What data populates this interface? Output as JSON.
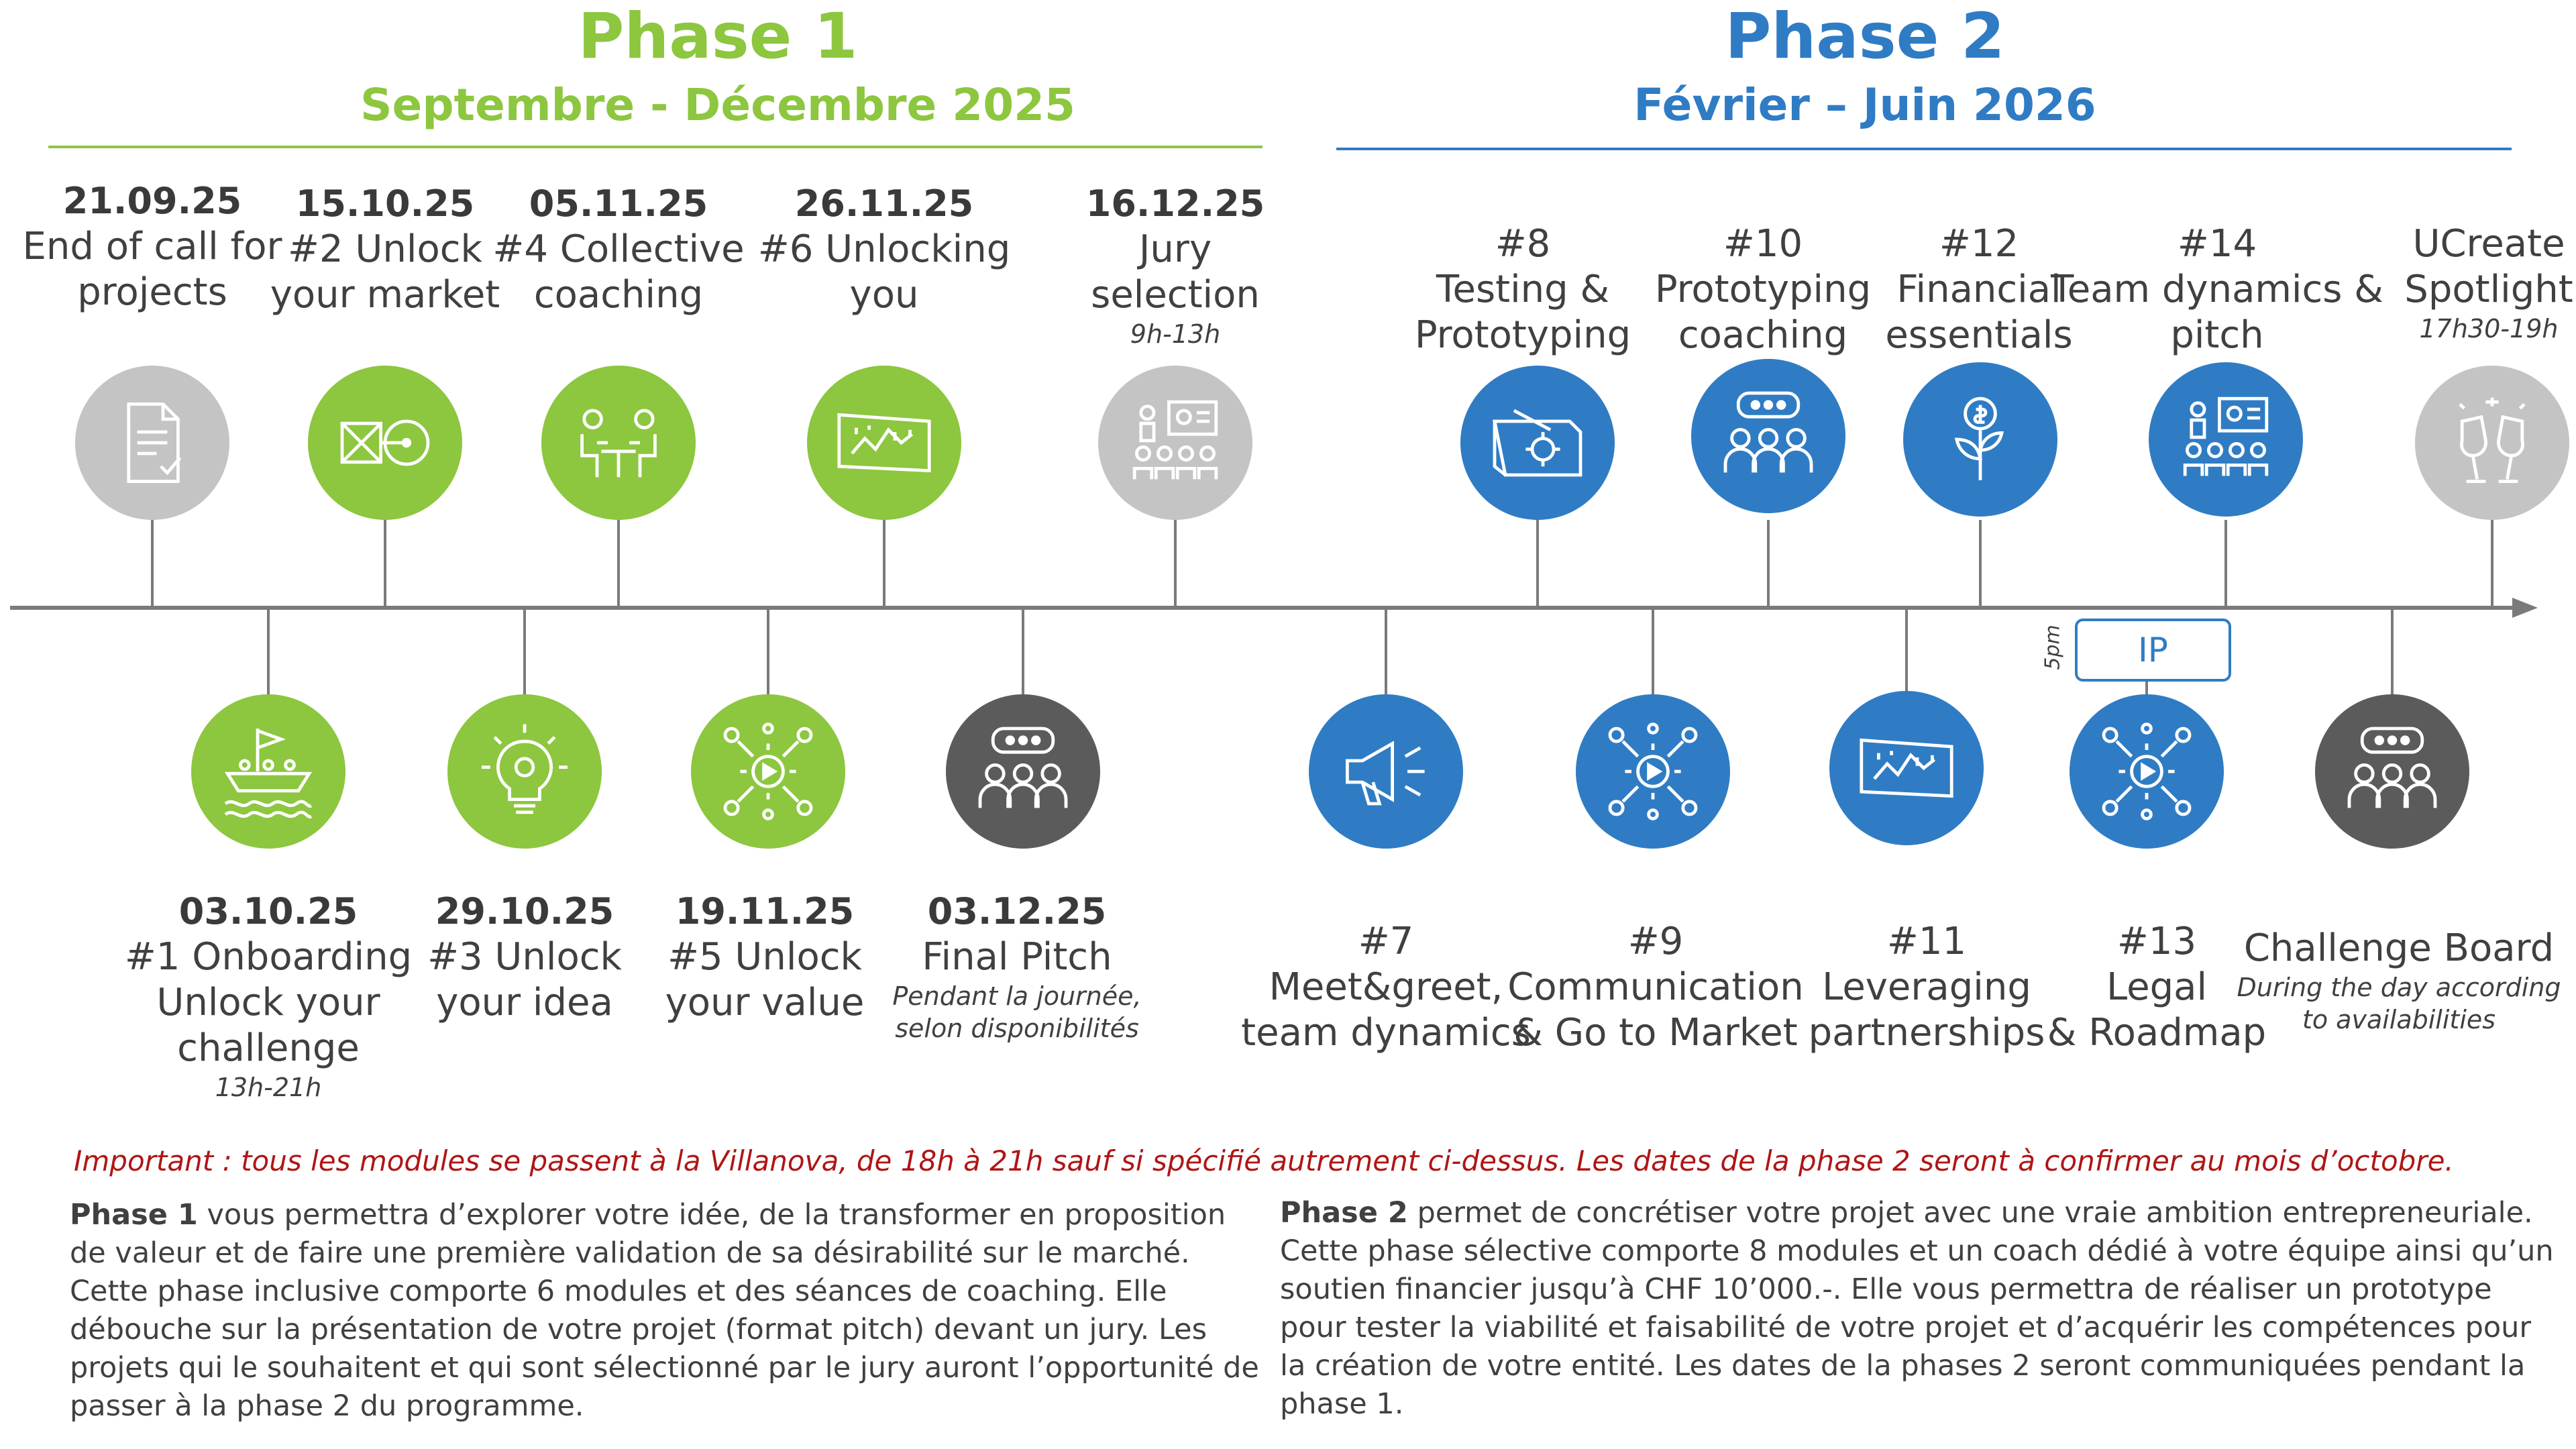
{
  "phase1": {
    "title": "Phase 1",
    "dates": "Septembre - Décembre 2025"
  },
  "phase2": {
    "title": "Phase 2",
    "dates": "Février – Juin 2026"
  },
  "colors": {
    "phase1": "#8dc63f",
    "phase2": "#2f7cc4",
    "grey": "#c4c4c4",
    "dark_grey": "#5b5b5b",
    "important": "#b01515"
  },
  "top_events": [
    {
      "date": "21.09.25",
      "label1": "End of call for",
      "label2": "projects",
      "icon": "document-check-icon"
    },
    {
      "date": "15.10.25",
      "label1": "#2 Unlock",
      "label2": "your market",
      "icon": "market-diagram-icon"
    },
    {
      "date": "05.11.25",
      "label1": "#4 Collective",
      "label2": "coaching",
      "icon": "meeting-table-icon"
    },
    {
      "date": "26.11.25",
      "label1": "#6 Unlocking",
      "label2": "you",
      "icon": "strategy-board-icon"
    },
    {
      "date": "16.12.25",
      "label1": "Jury",
      "label2": "selection",
      "time": "9h-13h",
      "icon": "presentation-audience-icon"
    },
    {
      "date": "#8",
      "label1": "Testing &",
      "label2": "Prototyping",
      "icon": "blueprint-gear-icon"
    },
    {
      "date": "#10",
      "label1": "Prototyping",
      "label2": "coaching",
      "icon": "chat-group-icon"
    },
    {
      "date": "#12",
      "label1": "Financial",
      "label2": "essentials",
      "icon": "money-plant-icon"
    },
    {
      "date": "#14",
      "label1": "Team dynamics &",
      "label2": "pitch",
      "icon": "presentation-audience-icon"
    },
    {
      "date": "UCreate",
      "label1": "Spotlight",
      "time": "17h30-19h",
      "icon": "champagne-toast-icon"
    }
  ],
  "bottom_events": [
    {
      "date": "03.10.25",
      "label1": "#1 Onboarding",
      "label2": "Unlock your",
      "label3": "challenge",
      "time": "13h-21h",
      "icon": "boat-crew-icon"
    },
    {
      "date": "29.10.25",
      "label1": "#3 Unlock",
      "label2": "your idea",
      "icon": "lightbulb-gear-icon"
    },
    {
      "date": "19.11.25",
      "label1": "#5 Unlock",
      "label2": "your value",
      "icon": "network-gear-icon"
    },
    {
      "date": "03.12.25",
      "label1": "Final Pitch",
      "note1": "Pendant la journée,",
      "note2": "selon disponibilités",
      "icon": "chat-group-icon"
    },
    {
      "date": "#7",
      "label1": "Meet&greet,",
      "label2": "team dynamics",
      "icon": "megaphone-icon"
    },
    {
      "date": "#9",
      "label1": "Communication",
      "label2": "& Go to Market",
      "icon": "network-gear-icon"
    },
    {
      "date": "#11",
      "label1": "Leveraging",
      "label2": "partnerships",
      "icon": "strategy-board-icon"
    },
    {
      "date": "#13",
      "label1": "Legal",
      "label2": "& Roadmap",
      "icon": "network-gear-icon"
    },
    {
      "label1": "Challenge Board",
      "note1": "During the day according",
      "note2": "to availabilities",
      "icon": "chat-group-icon"
    }
  ],
  "ip_box": {
    "label": "IP",
    "time": "5pm"
  },
  "important": "Important : tous les modules se passent à la Villanova, de 18h à 21h sauf si spécifié autrement ci-dessus. Les dates de la phase 2 seront à confirmer au mois d’octobre.",
  "para1": {
    "lead": "Phase 1",
    "text": " vous permettra d’explorer votre idée, de la transformer en proposition de valeur et de faire une première validation de sa désirabilité sur le marché. Cette phase inclusive comporte 6 modules et des séances de coaching. Elle débouche sur la présentation de votre projet (format pitch) devant un jury. Les projets qui le souhaitent et qui sont sélectionné par le jury auront l’opportunité de passer à la phase 2 du programme."
  },
  "para2": {
    "lead": "Phase 2",
    "text": " permet de concrétiser votre projet avec une vraie ambition entrepreneuriale. Cette phase sélective comporte 8 modules et un coach dédié à votre équipe ainsi qu’un soutien financier jusqu’à CHF 10’000.-. Elle vous permettra de réaliser un prototype pour tester la viabilité   et faisabilité de votre projet et d’acquérir les compétences pour la création de votre entité. Les dates de la phases 2 seront communiquées pendant la phase 1."
  }
}
